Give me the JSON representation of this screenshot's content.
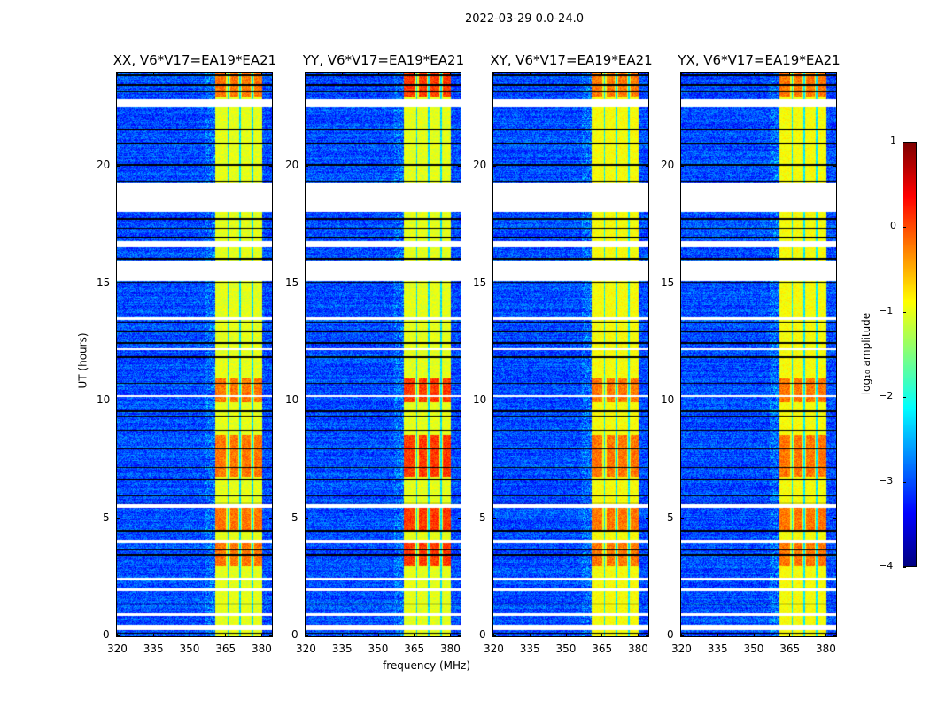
{
  "suptitle": "2022-03-29 0.0-24.0",
  "chart_data": {
    "type": "heatmap",
    "panels": [
      {
        "title": "XX, V6*V17=EA19*EA21"
      },
      {
        "title": "YY, V6*V17=EA19*EA21"
      },
      {
        "title": "XY, V6*V17=EA19*EA21"
      },
      {
        "title": "YX, V6*V17=EA19*EA21"
      }
    ],
    "xlabel": "frequency (MHz)",
    "ylabel": "UT (hours)",
    "xlim": [
      320,
      384.4
    ],
    "ylim": [
      0,
      24
    ],
    "xticks": [
      "320",
      "335",
      "350",
      "365",
      "380"
    ],
    "xtick_values": [
      320,
      335,
      350,
      365,
      380
    ],
    "yticks": [
      "0",
      "5",
      "10",
      "15",
      "20"
    ],
    "ytick_values": [
      0,
      5,
      10,
      15,
      20
    ],
    "colorbar": {
      "label": "log₁₀ amplitude",
      "ticks": [
        "1",
        "0",
        "−1",
        "−2",
        "−3",
        "−4"
      ],
      "tick_values": [
        1,
        0,
        -1,
        -2,
        -3,
        -4
      ],
      "range": [
        -4,
        1
      ],
      "colormap": "jet"
    },
    "background_level": -3.0,
    "band_mhz": [
      360.7,
      380.2
    ],
    "band_level": -1.0,
    "band_dark_channels_mhz": [
      366,
      371,
      376
    ],
    "strong_rfi_hours": [
      [
        23.0,
        24.0
      ],
      [
        10.0,
        11.0
      ],
      [
        6.8,
        8.6
      ],
      [
        4.5,
        5.5
      ],
      [
        3.0,
        4.0
      ]
    ],
    "flagged_hours": [
      [
        18.1,
        19.35
      ],
      [
        15.15,
        16.03
      ],
      [
        16.6,
        16.85
      ],
      [
        22.55,
        22.9
      ],
      [
        5.5,
        5.65
      ],
      [
        4.0,
        4.15
      ],
      [
        2.4,
        2.5
      ],
      [
        1.95,
        2.05
      ],
      [
        0.9,
        1.0
      ],
      [
        0.3,
        0.5
      ],
      [
        12.2,
        12.3
      ],
      [
        10.2,
        10.3
      ],
      [
        13.5,
        13.6
      ]
    ],
    "dark_lines_hours": [
      0.15,
      0.45,
      1.4,
      3.5,
      3.7,
      4.5,
      5.7,
      6.0,
      6.7,
      7.2,
      8.0,
      8.8,
      9.4,
      9.6,
      10.8,
      11.9,
      12.5,
      13.0,
      13.4,
      15.1,
      16.1,
      17.0,
      17.4,
      17.8,
      19.4,
      20.1,
      21.0,
      21.6,
      23.2,
      23.5,
      23.9
    ]
  }
}
